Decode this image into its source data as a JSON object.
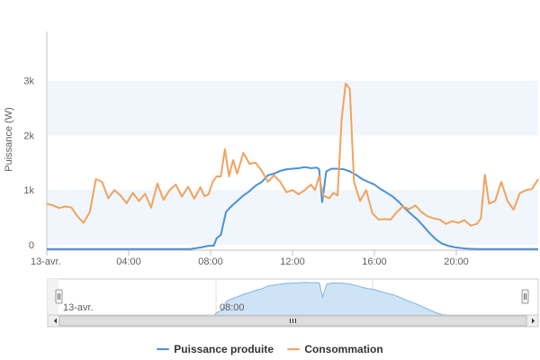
{
  "colors": {
    "produced": "#4a90d9",
    "consumption": "#f0a35e",
    "band": "#f0f6fb",
    "axis": "#c0c0c0",
    "navigator_fill": "#cfe3f6",
    "navigator_line": "#7fb3e3",
    "scrollbar": "#e6e6e6"
  },
  "chart_data": {
    "type": "line",
    "ylabel": "Puissance (W)",
    "ylim": [
      -100,
      3900
    ],
    "y_ticks": [
      {
        "value": 0,
        "label": "0"
      },
      {
        "value": 1000,
        "label": "1k"
      },
      {
        "value": 2000,
        "label": "2k"
      },
      {
        "value": 3000,
        "label": "3k"
      }
    ],
    "xlim": [
      0,
      24
    ],
    "x_ticks": [
      {
        "value": 0,
        "label": "13-avr."
      },
      {
        "value": 4,
        "label": "04:00"
      },
      {
        "value": 8,
        "label": "08:00"
      },
      {
        "value": 12,
        "label": "12:00"
      },
      {
        "value": 16,
        "label": "16:00"
      },
      {
        "value": 20,
        "label": "20:00"
      }
    ],
    "grid": true,
    "legend_position": "bottom-center",
    "series": [
      {
        "name": "Puissance produite",
        "color": "#4a90d9",
        "x": [
          0,
          3,
          6,
          7,
          7.5,
          7.9,
          8.15,
          8.3,
          8.5,
          8.75,
          9,
          9.3,
          9.6,
          9.9,
          10.2,
          10.5,
          10.8,
          11.1,
          11.4,
          11.7,
          12,
          12.3,
          12.6,
          12.9,
          13.2,
          13.3,
          13.45,
          13.65,
          13.9,
          14.2,
          14.5,
          14.8,
          15.1,
          15.4,
          15.7,
          16,
          16.3,
          16.6,
          16.9,
          17.2,
          17.5,
          17.8,
          18.1,
          18.4,
          18.7,
          19,
          19.3,
          19.6,
          20,
          20.5,
          21,
          24
        ],
        "y": [
          -80,
          -80,
          -80,
          -80,
          -50,
          -20,
          -20,
          120,
          180,
          600,
          700,
          800,
          900,
          980,
          1080,
          1150,
          1270,
          1300,
          1350,
          1380,
          1390,
          1400,
          1420,
          1400,
          1410,
          1380,
          780,
          1340,
          1390,
          1390,
          1380,
          1340,
          1280,
          1200,
          1150,
          1100,
          1020,
          950,
          880,
          780,
          660,
          560,
          460,
          340,
          210,
          100,
          20,
          -20,
          -50,
          -70,
          -80,
          -80
        ]
      },
      {
        "name": "Consommation",
        "color": "#f0a35e",
        "x": [
          0,
          0.3,
          0.6,
          0.9,
          1.2,
          1.5,
          1.8,
          2.1,
          2.4,
          2.7,
          3,
          3.3,
          3.6,
          3.9,
          4.2,
          4.5,
          4.8,
          5.1,
          5.4,
          5.7,
          6,
          6.3,
          6.6,
          6.9,
          7.2,
          7.5,
          7.7,
          7.9,
          8.1,
          8.3,
          8.5,
          8.7,
          8.9,
          9.1,
          9.3,
          9.6,
          9.9,
          10.2,
          10.5,
          10.8,
          11.1,
          11.4,
          11.7,
          12,
          12.3,
          12.6,
          12.9,
          13.1,
          13.3,
          13.5,
          13.8,
          14,
          14.2,
          14.4,
          14.6,
          14.8,
          15,
          15.3,
          15.6,
          15.9,
          16.2,
          16.5,
          16.8,
          17.1,
          17.4,
          17.7,
          18,
          18.3,
          18.6,
          18.9,
          19.2,
          19.5,
          19.8,
          20.1,
          20.4,
          20.7,
          21,
          21.2,
          21.4,
          21.6,
          21.9,
          22.2,
          22.5,
          22.8,
          23.1,
          23.4,
          23.7,
          24
        ],
        "y": [
          750,
          720,
          670,
          700,
          680,
          520,
          400,
          600,
          1200,
          1150,
          850,
          1000,
          900,
          760,
          950,
          800,
          930,
          680,
          1120,
          820,
          1000,
          1100,
          880,
          1060,
          840,
          1050,
          890,
          920,
          1150,
          1250,
          1250,
          1750,
          1250,
          1550,
          1300,
          1680,
          1480,
          1500,
          1350,
          1150,
          1270,
          1150,
          960,
          1000,
          920,
          1000,
          1100,
          1000,
          1250,
          900,
          850,
          950,
          900,
          2300,
          2950,
          2850,
          1150,
          800,
          1000,
          580,
          460,
          470,
          460,
          600,
          700,
          650,
          720,
          600,
          520,
          480,
          460,
          380,
          430,
          400,
          450,
          350,
          380,
          480,
          1280,
          750,
          800,
          1150,
          800,
          640,
          940,
          1000,
          1020,
          1200
        ]
      }
    ],
    "navigator": {
      "start_label": "13-avr.",
      "mid_label": "08:00"
    }
  }
}
